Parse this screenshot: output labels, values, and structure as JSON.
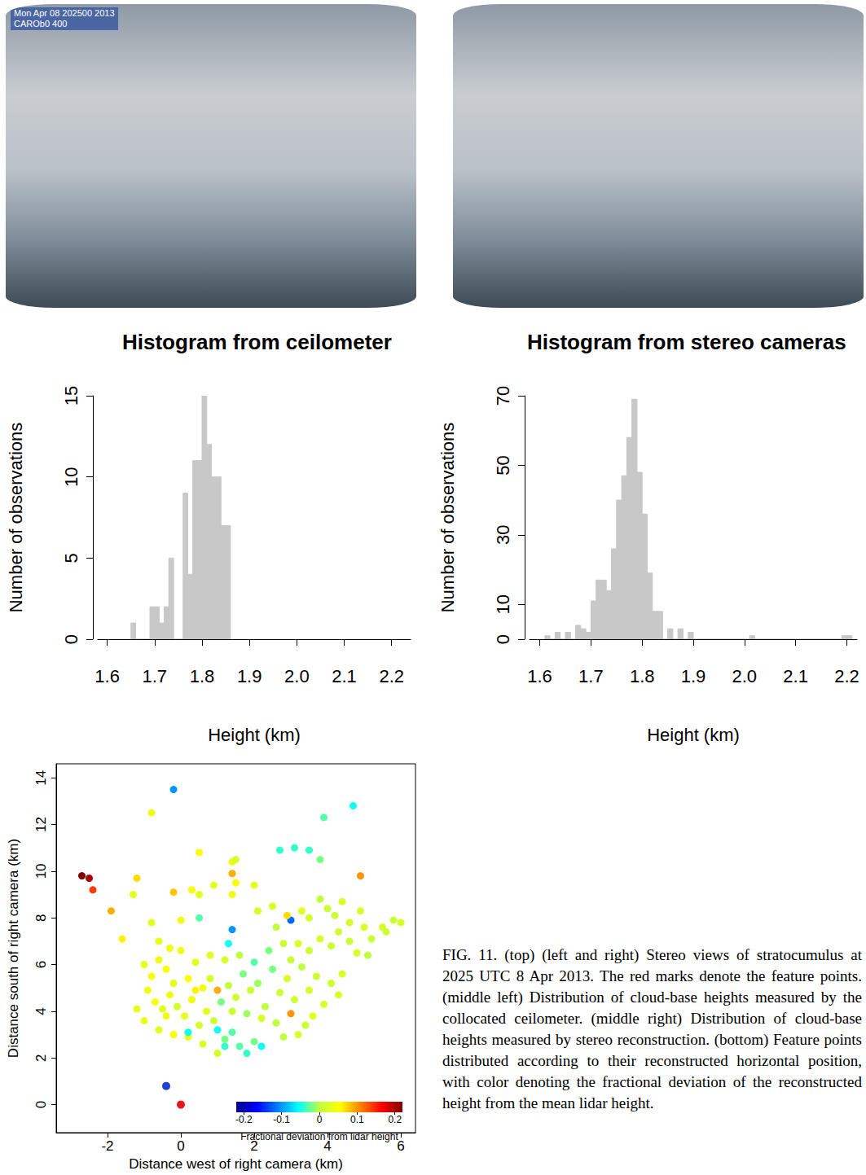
{
  "photos": {
    "left_stamp": [
      "Mon Apr 08 202500 2013",
      "CAROb0 400"
    ]
  },
  "caption": "FIG. 11. (top) (left and right) Stereo views of stratocumulus at 2025 UTC 8 Apr 2013. The red marks denote the feature points. (middle left) Distribution of cloud-base heights measured by the collocated ceilometer. (middle right) Distribution of cloud-base heights measured by stereo reconstruction. (bottom) Feature points distributed according to their reconstructed horizontal position, with color denoting the fractional deviation of the reconstructed height from the mean lidar height.",
  "chart_data": [
    {
      "type": "histogram",
      "title": "Histogram from ceilometer",
      "x_label": "Height (km)",
      "y_label": "Number of observations",
      "bins": [
        1.65,
        1.66,
        1.67,
        1.68,
        1.69,
        1.7,
        1.71,
        1.72,
        1.73,
        1.74,
        1.75,
        1.76,
        1.77,
        1.78,
        1.79,
        1.8,
        1.81,
        1.82,
        1.83,
        1.84,
        1.85,
        1.86
      ],
      "counts": [
        1,
        0,
        0,
        0,
        2,
        2,
        1,
        2,
        5,
        0,
        0,
        9,
        4,
        11,
        11,
        15,
        12,
        10,
        10,
        7,
        7
      ],
      "color": "#c8c8c8",
      "xlim": [
        1.58,
        2.24
      ],
      "xticks": [
        1.6,
        1.7,
        1.8,
        1.9,
        {
          "value": 2,
          "label": "2.0"
        },
        2.1,
        2.2
      ],
      "ylim": [
        0,
        15
      ],
      "yticks": [
        0,
        5,
        10,
        15
      ],
      "grid": false
    },
    {
      "type": "histogram",
      "title": "Histogram from stereo cameras",
      "x_label": "Height (km)",
      "y_label": "Number of observations",
      "bins": [
        1.61,
        1.62,
        1.63,
        1.64,
        1.65,
        1.66,
        1.67,
        1.68,
        1.69,
        1.7,
        1.71,
        1.72,
        1.73,
        1.74,
        1.75,
        1.76,
        1.77,
        1.78,
        1.79,
        1.8,
        1.81,
        1.82,
        1.83,
        1.84,
        1.85,
        1.86,
        1.87,
        1.88,
        1.89,
        1.9,
        1.91,
        1.92,
        1.93,
        1.94,
        1.95,
        1.96,
        1.97,
        1.98,
        1.99,
        2.0,
        2.01,
        2.02,
        2.03,
        2.04,
        2.05,
        2.06,
        2.07,
        2.08,
        2.09,
        2.1,
        2.11,
        2.12,
        2.13,
        2.14,
        2.15,
        2.16,
        2.17,
        2.18,
        2.19,
        2.2,
        2.21
      ],
      "counts": [
        1,
        0,
        2,
        0,
        2,
        0,
        4,
        3,
        2,
        11,
        17,
        17,
        14,
        26,
        40,
        47,
        58,
        69,
        48,
        36,
        19,
        8,
        8,
        0,
        3,
        0,
        3,
        0,
        2,
        0,
        0,
        0,
        0,
        0,
        0,
        0,
        0,
        0,
        0,
        0,
        1,
        0,
        0,
        0,
        0,
        0,
        0,
        0,
        0,
        0,
        0,
        0,
        0,
        0,
        0,
        0,
        0,
        0,
        1,
        1
      ],
      "color": "#c8c8c8",
      "xlim": [
        1.58,
        2.22
      ],
      "xticks": [
        1.6,
        1.7,
        1.8,
        1.9,
        {
          "value": 2,
          "label": "2.0"
        },
        2.1,
        2.2
      ],
      "ylim": [
        0,
        70
      ],
      "yticks": [
        0,
        10,
        30,
        50,
        70
      ],
      "grid": false
    },
    {
      "type": "scatter",
      "x_label": "Distance west of right camera (km)",
      "y_label": "Distance south of right camera (km)",
      "xlim": [
        -3.4,
        6.4
      ],
      "xticks": [
        -2,
        0,
        2,
        4,
        6
      ],
      "ylim": [
        -1.2,
        14.6
      ],
      "yticks": [
        0,
        2,
        4,
        6,
        8,
        10,
        12,
        14
      ],
      "grid": false,
      "points": [
        [
          -2.7,
          9.8,
          0.22
        ],
        [
          -2.5,
          9.7,
          0.2
        ],
        [
          -2.4,
          9.2,
          0.14
        ],
        [
          -1.9,
          8.3,
          0.09
        ],
        [
          -1.6,
          7.1,
          0.06
        ],
        [
          -0.8,
          12.5,
          0.04
        ],
        [
          -0.2,
          13.5,
          -0.1
        ],
        [
          -1.2,
          9.7,
          0.07
        ],
        [
          -1.3,
          9.0,
          0.03
        ],
        [
          -0.2,
          9.1,
          0.08
        ],
        [
          0.5,
          10.8,
          0.05
        ],
        [
          0.3,
          9.2,
          0.05
        ],
        [
          0.5,
          9.0,
          0.03
        ],
        [
          1.4,
          10.4,
          0.04
        ],
        [
          1.5,
          10.5,
          0.02
        ],
        [
          1.4,
          9.9,
          0.09
        ],
        [
          1.5,
          9.5,
          0.05
        ],
        [
          1.4,
          9.0,
          0.04
        ],
        [
          2.0,
          9.4,
          0.03
        ],
        [
          2.7,
          10.9,
          -0.04
        ],
        [
          3.1,
          11.0,
          -0.04
        ],
        [
          3.5,
          10.9,
          -0.04
        ],
        [
          3.8,
          10.5,
          -0.02
        ],
        [
          3.9,
          12.3,
          -0.03
        ],
        [
          4.7,
          12.8,
          -0.05
        ],
        [
          4.9,
          9.8,
          0.1
        ],
        [
          3.0,
          7.9,
          -0.12
        ],
        [
          1.3,
          6.9,
          -0.05
        ],
        [
          1.4,
          7.5,
          -0.1
        ],
        [
          0.5,
          8.0,
          -0.03
        ],
        [
          -0.8,
          7.8,
          0.03
        ],
        [
          0.0,
          7.9,
          0.04
        ],
        [
          0.9,
          9.4,
          0.03
        ],
        [
          2.1,
          8.3,
          0.02
        ],
        [
          2.5,
          8.5,
          0.02
        ],
        [
          3.3,
          8.3,
          0.03
        ],
        [
          3.5,
          8.0,
          0.02
        ],
        [
          3.8,
          8.8,
          0.0
        ],
        [
          4.0,
          8.4,
          0.01
        ],
        [
          4.2,
          8.1,
          0.01
        ],
        [
          4.4,
          8.7,
          0.02
        ],
        [
          4.6,
          7.8,
          0.02
        ],
        [
          4.9,
          8.3,
          0.02
        ],
        [
          5.0,
          7.6,
          0.02
        ],
        [
          5.2,
          7.1,
          0.01
        ],
        [
          5.5,
          7.6,
          0.02
        ],
        [
          5.8,
          7.9,
          0.01
        ],
        [
          6.0,
          7.8,
          0.02
        ],
        [
          5.6,
          7.4,
          0.01
        ],
        [
          4.3,
          7.4,
          0.01
        ],
        [
          4.6,
          7.0,
          0.01
        ],
        [
          4.1,
          6.8,
          0.01
        ],
        [
          3.8,
          7.1,
          0.02
        ],
        [
          3.5,
          6.6,
          0.01
        ],
        [
          3.2,
          6.9,
          0.02
        ],
        [
          3.0,
          6.2,
          0.01
        ],
        [
          2.6,
          7.6,
          0.0
        ],
        [
          2.8,
          6.9,
          0.01
        ],
        [
          4.8,
          6.5,
          0.02
        ],
        [
          5.1,
          6.4,
          0.0
        ],
        [
          -1.0,
          6.0,
          0.03
        ],
        [
          -0.8,
          5.5,
          0.05
        ],
        [
          -0.6,
          6.2,
          0.04
        ],
        [
          -0.4,
          5.8,
          0.05
        ],
        [
          -0.2,
          5.2,
          0.03
        ],
        [
          0.0,
          6.6,
          0.04
        ],
        [
          0.2,
          5.4,
          0.05
        ],
        [
          0.4,
          6.1,
          0.03
        ],
        [
          0.6,
          5.0,
          0.04
        ],
        [
          0.8,
          6.4,
          0.03
        ],
        [
          -0.9,
          4.9,
          0.04
        ],
        [
          -0.7,
          4.4,
          0.05
        ],
        [
          -0.5,
          4.1,
          0.03
        ],
        [
          -0.3,
          4.7,
          0.04
        ],
        [
          -0.1,
          4.2,
          0.02
        ],
        [
          0.1,
          3.8,
          0.03
        ],
        [
          0.3,
          4.5,
          0.04
        ],
        [
          0.5,
          3.4,
          0.02
        ],
        [
          0.7,
          4.0,
          0.03
        ],
        [
          0.9,
          3.6,
          0.01
        ],
        [
          -1.2,
          4.1,
          0.03
        ],
        [
          -1.0,
          3.6,
          0.04
        ],
        [
          -0.6,
          3.2,
          0.03
        ],
        [
          -0.2,
          3.0,
          0.05
        ],
        [
          0.2,
          2.9,
          0.03
        ],
        [
          0.6,
          2.6,
          0.02
        ],
        [
          1.0,
          3.2,
          -0.05
        ],
        [
          1.2,
          2.8,
          -0.02
        ],
        [
          1.4,
          3.1,
          -0.03
        ],
        [
          1.6,
          2.5,
          -0.03
        ],
        [
          1.8,
          2.2,
          -0.04
        ],
        [
          2.0,
          2.7,
          -0.02
        ],
        [
          2.2,
          2.5,
          -0.05
        ],
        [
          1.1,
          4.4,
          -0.02
        ],
        [
          1.3,
          5.1,
          0.0
        ],
        [
          1.5,
          4.6,
          0.01
        ],
        [
          1.7,
          5.6,
          -0.02
        ],
        [
          1.9,
          4.9,
          0.01
        ],
        [
          2.1,
          5.2,
          -0.01
        ],
        [
          2.3,
          4.2,
          0.0
        ],
        [
          2.5,
          5.8,
          -0.02
        ],
        [
          2.7,
          4.8,
          0.01
        ],
        [
          2.9,
          5.4,
          0.02
        ],
        [
          3.1,
          4.5,
          0.01
        ],
        [
          3.3,
          5.9,
          0.0
        ],
        [
          3.5,
          4.9,
          0.02
        ],
        [
          3.7,
          5.5,
          0.01
        ],
        [
          3.9,
          4.3,
          0.02
        ],
        [
          4.1,
          5.2,
          0.01
        ],
        [
          4.3,
          4.7,
          0.02
        ],
        [
          1.2,
          6.2,
          0.02
        ],
        [
          1.6,
          6.4,
          0.0
        ],
        [
          2.0,
          6.1,
          -0.03
        ],
        [
          2.4,
          6.6,
          -0.02
        ],
        [
          2.2,
          3.7,
          0.02
        ],
        [
          2.6,
          3.5,
          0.0
        ],
        [
          3.0,
          3.9,
          0.1
        ],
        [
          3.4,
          3.4,
          0.01
        ],
        [
          1.8,
          3.9,
          -0.01
        ],
        [
          1.4,
          4.0,
          0.01
        ],
        [
          0.4,
          4.9,
          0.06
        ],
        [
          -0.4,
          3.8,
          0.04
        ],
        [
          2.8,
          2.9,
          0.0
        ],
        [
          3.2,
          3.0,
          0.02
        ],
        [
          0.8,
          5.4,
          0.02
        ],
        [
          1.0,
          4.9,
          0.09
        ],
        [
          2.9,
          8.1,
          0.07
        ],
        [
          1.2,
          2.5,
          -0.04
        ],
        [
          0.2,
          3.1,
          -0.05
        ],
        [
          1.0,
          2.2,
          0.02
        ],
        [
          3.6,
          3.8,
          0.03
        ],
        [
          4.4,
          5.6,
          0.02
        ],
        [
          -0.3,
          6.7,
          0.04
        ],
        [
          -0.6,
          7.0,
          0.03
        ]
      ],
      "markers": [
        {
          "x": 0,
          "y": 0,
          "color": "#e41a1c"
        },
        {
          "x": -0.4,
          "y": 0.8,
          "color": "#1f3fd6"
        }
      ],
      "colorbar": {
        "label": "Fractional deviation from lidar height",
        "range": [
          -0.22,
          0.22
        ],
        "ticks": [
          -0.2,
          -0.1,
          0,
          0.1,
          0.2
        ],
        "colors": [
          "#00008f",
          "#0000ff",
          "#007fff",
          "#00ffff",
          "#bfff40",
          "#ffff00",
          "#ff7f00",
          "#ff0000",
          "#7f0000"
        ]
      }
    }
  ]
}
